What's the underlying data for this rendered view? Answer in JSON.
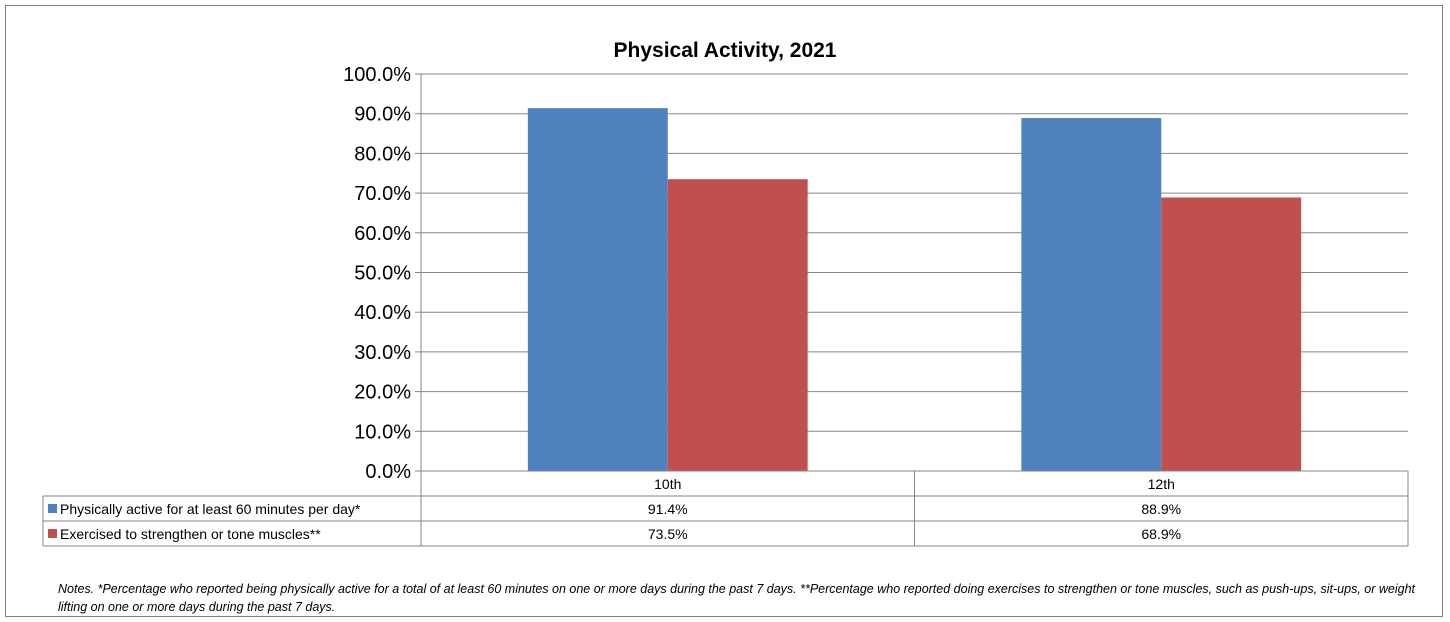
{
  "chart_data": {
    "type": "bar",
    "title": "Physical Activity, 2021",
    "categories": [
      "10th",
      "12th"
    ],
    "series": [
      {
        "name": "Physically active for at least 60 minutes per day*",
        "values": [
          91.4,
          88.9
        ],
        "labels": [
          "91.4%",
          "88.9%"
        ],
        "color": "#4F81BD"
      },
      {
        "name": "Exercised to strengthen or tone muscles**",
        "values": [
          73.5,
          68.9
        ],
        "labels": [
          "73.5%",
          "68.9%"
        ],
        "color": "#C0504D"
      }
    ],
    "ylim": [
      0,
      100
    ],
    "ytick_values": [
      0,
      10,
      20,
      30,
      40,
      50,
      60,
      70,
      80,
      90,
      100
    ],
    "ytick_labels": [
      "0.0%",
      "10.0%",
      "20.0%",
      "30.0%",
      "40.0%",
      "50.0%",
      "60.0%",
      "70.0%",
      "80.0%",
      "90.0%",
      "100.0%"
    ],
    "xlabel": "",
    "ylabel": "",
    "grid": true,
    "legend": "data table below chart"
  },
  "notes": "Notes. *Percentage who reported being physically active for a total of at least 60 minutes on one or more days during the past 7 days. **Percentage who reported doing exercises to strengthen or tone muscles, such as push-ups, sit-ups, or weight lifting on one or more days during the past 7 days."
}
